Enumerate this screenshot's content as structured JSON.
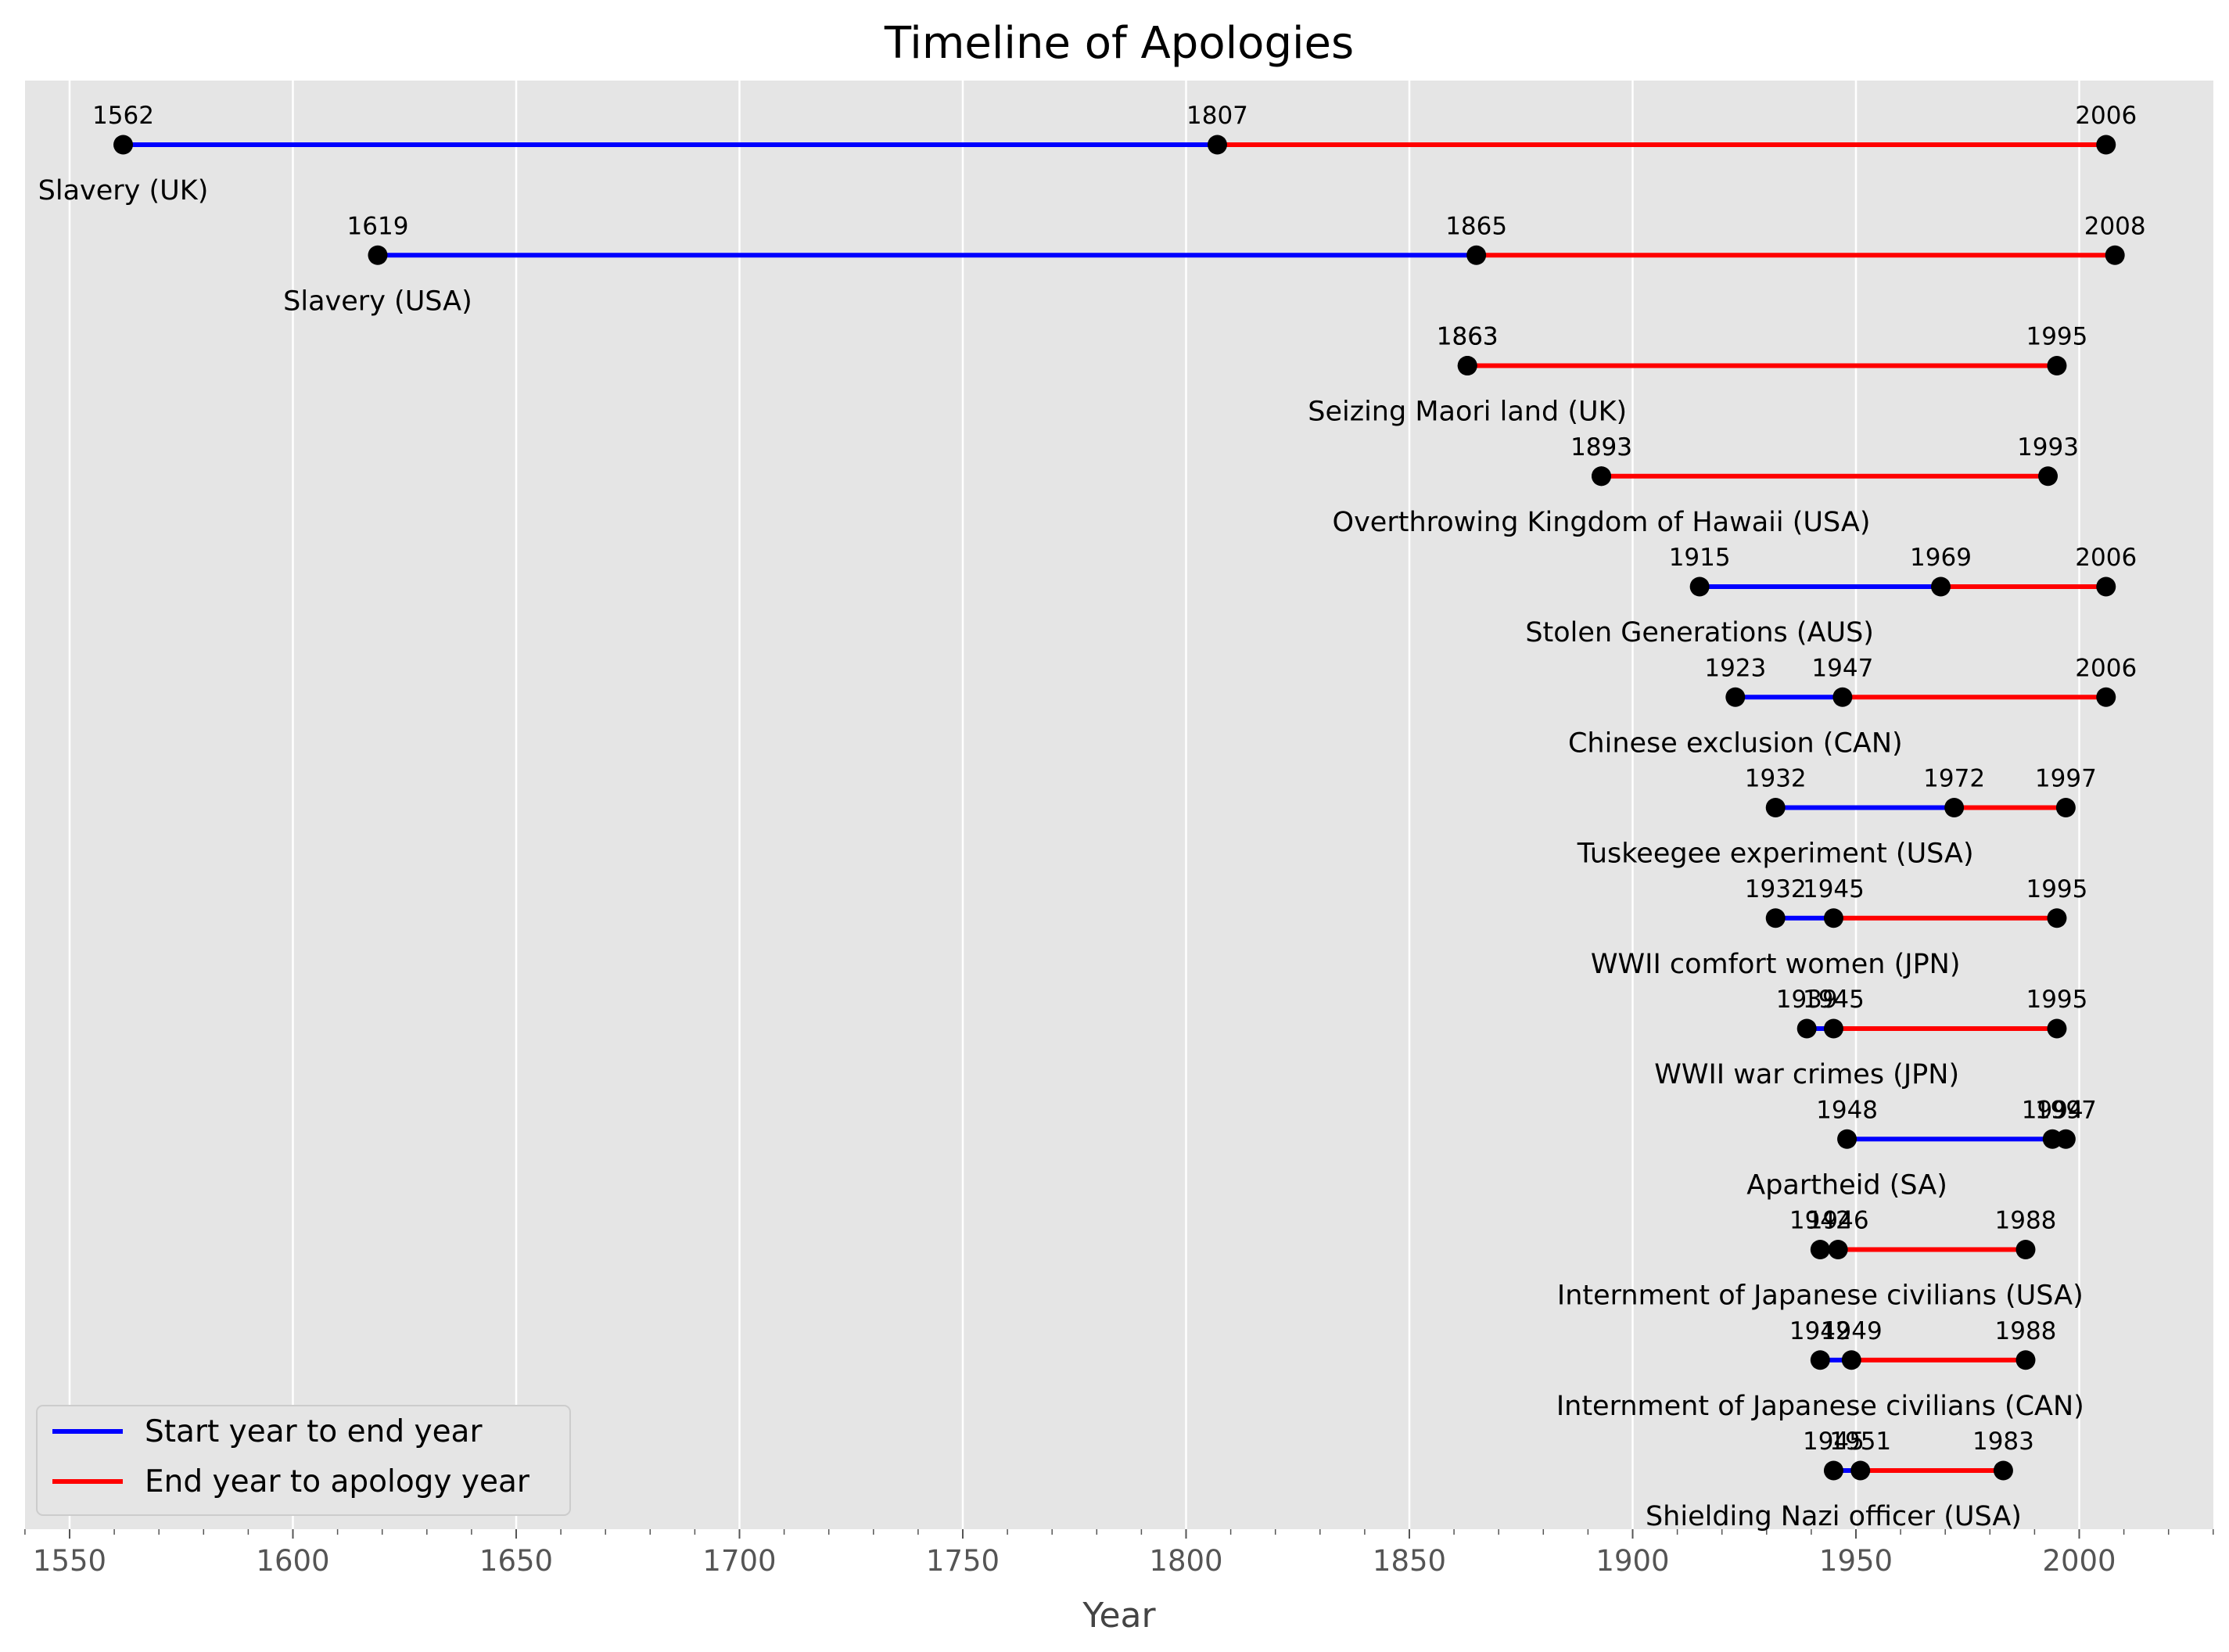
{
  "chart_data": {
    "type": "line",
    "title": "Timeline of Apologies",
    "xlabel": "Year",
    "ylabel": "",
    "xlim": [
      1540,
      2030
    ],
    "x_ticks": [
      1550,
      1600,
      1650,
      1700,
      1750,
      1800,
      1850,
      1900,
      1950,
      2000
    ],
    "grid": "vertical",
    "legend": {
      "placement": "bottom-left",
      "entries": [
        {
          "label": "Start year to end year",
          "color": "#0000ff"
        },
        {
          "label": "End year to apology year",
          "color": "#ff0000"
        }
      ]
    },
    "colors": {
      "start_segment": "#0000ff",
      "end_segment": "#ff0000",
      "marker": "#000000",
      "background": "#e5e5e5",
      "grid": "#ffffff"
    },
    "events": [
      {
        "name": "Slavery (UK)",
        "start": 1562,
        "end": 1807,
        "apology": 2006
      },
      {
        "name": "Slavery (USA)",
        "start": 1619,
        "end": 1865,
        "apology": 2008
      },
      {
        "name": "Seizing Maori land (UK)",
        "start": 1863,
        "end": 1863,
        "apology": 1995
      },
      {
        "name": "Overthrowing Kingdom of Hawaii (USA)",
        "start": 1893,
        "end": 1893,
        "apology": 1993
      },
      {
        "name": "Stolen Generations (AUS)",
        "start": 1915,
        "end": 1969,
        "apology": 2006
      },
      {
        "name": "Chinese exclusion (CAN)",
        "start": 1923,
        "end": 1947,
        "apology": 2006
      },
      {
        "name": "Tuskeegee experiment  (USA)",
        "start": 1932,
        "end": 1972,
        "apology": 1997
      },
      {
        "name": "WWII comfort women (JPN)",
        "start": 1932,
        "end": 1945,
        "apology": 1995
      },
      {
        "name": "WWII war crimes (JPN)",
        "start": 1939,
        "end": 1945,
        "apology": 1995
      },
      {
        "name": "Apartheid (SA)",
        "start": 1948,
        "end": 1994,
        "apology": 1997
      },
      {
        "name": "Internment of Japanese civilians (USA)",
        "start": 1942,
        "end": 1946,
        "apology": 1988
      },
      {
        "name": "Internment of Japanese civilians  (CAN)",
        "start": 1942,
        "end": 1949,
        "apology": 1988
      },
      {
        "name": "Shielding Nazi officer (USA)",
        "start": 1945,
        "end": 1951,
        "apology": 1983
      }
    ]
  }
}
